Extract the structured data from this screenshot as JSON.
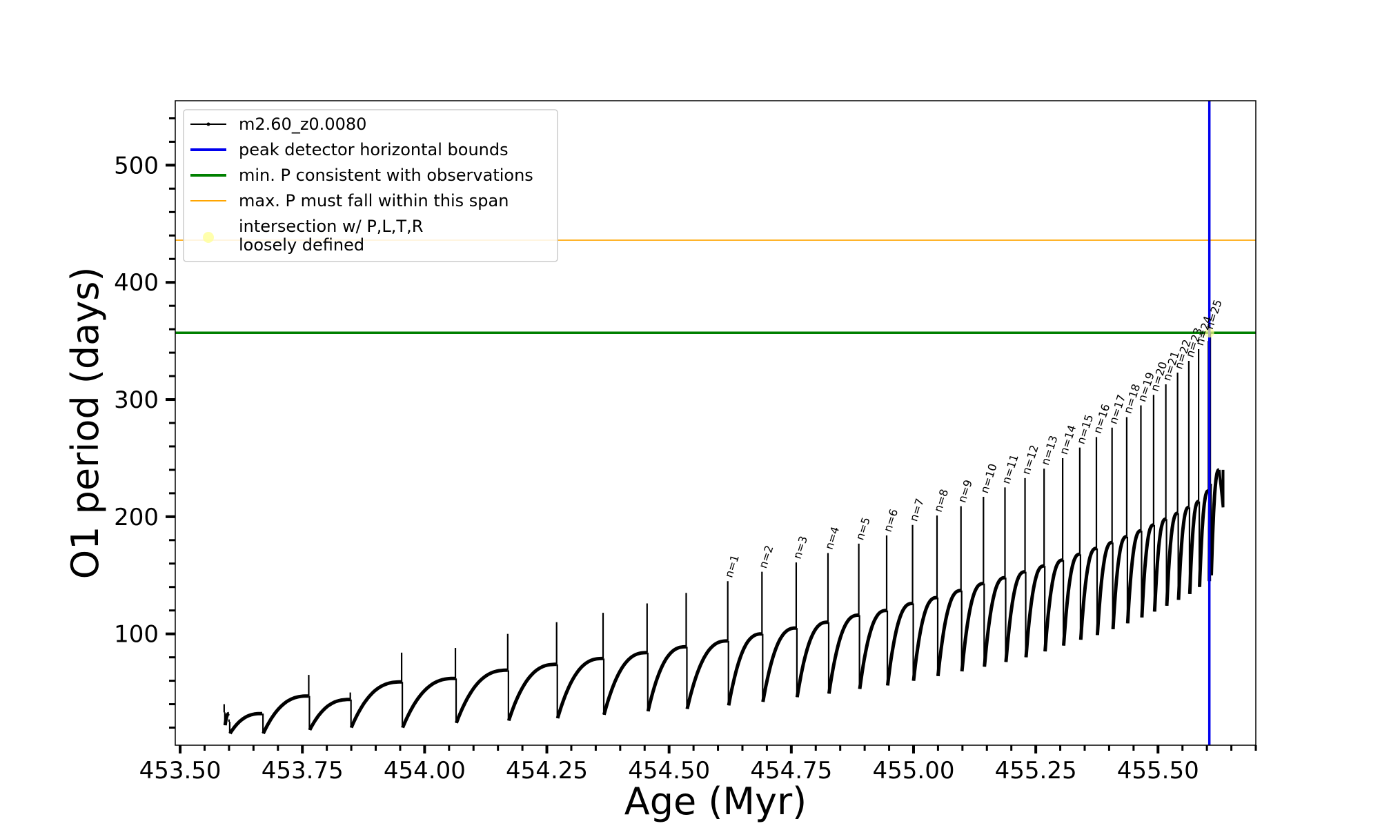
{
  "chart_data": {
    "type": "line",
    "xlabel": "Age (Myr)",
    "ylabel": "O1 period (days)",
    "xlim": [
      453.49,
      455.7
    ],
    "ylim": [
      5,
      555
    ],
    "x_ticks": [
      453.5,
      453.75,
      454.0,
      454.25,
      454.5,
      454.75,
      455.0,
      455.25,
      455.5
    ],
    "x_tick_labels": [
      "453.50",
      "453.75",
      "454.00",
      "454.25",
      "454.50",
      "454.75",
      "455.00",
      "455.25",
      "455.50"
    ],
    "y_ticks": [
      100,
      200,
      300,
      400,
      500
    ],
    "y_tick_labels": [
      "100",
      "200",
      "300",
      "400",
      "500"
    ],
    "legend_position": "upper-left",
    "legend": [
      {
        "label": "m2.60_z0.0080",
        "color": "#000000",
        "style": "line-marker"
      },
      {
        "label": "peak detector horizontal bounds",
        "color": "#0000ee",
        "style": "line"
      },
      {
        "label": "min. P consistent with observations",
        "color": "#008000",
        "style": "line"
      },
      {
        "label": "max. P must fall within this span",
        "color": "#ffa500",
        "style": "line"
      },
      {
        "label": "intersection w/ P,L,T,R",
        "label2": "loosely defined",
        "color": "#ffff99",
        "style": "marker"
      }
    ],
    "vertical_line": {
      "x": 455.605,
      "color": "#0000ee"
    },
    "hlines": [
      {
        "y": 357,
        "color": "#008000"
      },
      {
        "y": 436,
        "color": "#ffa500"
      }
    ],
    "intersection_point": {
      "x": 455.605,
      "y": 357,
      "color": "#ffff99"
    },
    "series": [
      {
        "name": "m2.60_z0.0080",
        "color": "#000000",
        "pulses": [
          {
            "x": 453.59,
            "base": 33,
            "peak": 40,
            "min": 22,
            "end": 32
          },
          {
            "x": 453.6,
            "base": 25,
            "peak": 27,
            "min": 15,
            "end": 32
          },
          {
            "x": 453.668,
            "base": 32,
            "peak": 32,
            "min": 15,
            "end": 47
          },
          {
            "x": 453.763,
            "base": 47,
            "peak": 65,
            "min": 18,
            "end": 44
          },
          {
            "x": 453.848,
            "base": 44,
            "peak": 50,
            "min": 20,
            "end": 59
          },
          {
            "x": 453.953,
            "base": 59,
            "peak": 84,
            "min": 20,
            "end": 62
          },
          {
            "x": 454.063,
            "base": 62,
            "peak": 88,
            "min": 24,
            "end": 69
          },
          {
            "x": 454.17,
            "base": 69,
            "peak": 100,
            "min": 26,
            "end": 74
          },
          {
            "x": 454.27,
            "base": 74,
            "peak": 110,
            "min": 28,
            "end": 79
          },
          {
            "x": 454.365,
            "base": 79,
            "peak": 118,
            "min": 31,
            "end": 84
          },
          {
            "x": 454.455,
            "base": 84,
            "peak": 126,
            "min": 34,
            "end": 89
          },
          {
            "x": 454.535,
            "base": 89,
            "peak": 135,
            "min": 36,
            "end": 94
          },
          {
            "x": 454.62,
            "base": 94,
            "peak": 145,
            "min": 39,
            "end": 100
          },
          {
            "x": 454.69,
            "base": 100,
            "peak": 153,
            "min": 42,
            "end": 105
          },
          {
            "x": 454.76,
            "base": 105,
            "peak": 161,
            "min": 46,
            "end": 110
          },
          {
            "x": 454.825,
            "base": 110,
            "peak": 169,
            "min": 49,
            "end": 116
          },
          {
            "x": 454.888,
            "base": 116,
            "peak": 177,
            "min": 53,
            "end": 120
          },
          {
            "x": 454.945,
            "base": 120,
            "peak": 184,
            "min": 56,
            "end": 126
          },
          {
            "x": 454.998,
            "base": 126,
            "peak": 193,
            "min": 60,
            "end": 131
          },
          {
            "x": 455.048,
            "base": 131,
            "peak": 201,
            "min": 64,
            "end": 137
          },
          {
            "x": 455.097,
            "base": 137,
            "peak": 209,
            "min": 68,
            "end": 143
          },
          {
            "x": 455.143,
            "base": 143,
            "peak": 217,
            "min": 72,
            "end": 148
          },
          {
            "x": 455.187,
            "base": 148,
            "peak": 225,
            "min": 76,
            "end": 153
          },
          {
            "x": 455.228,
            "base": 153,
            "peak": 233,
            "min": 80,
            "end": 158
          },
          {
            "x": 455.267,
            "base": 158,
            "peak": 241,
            "min": 85,
            "end": 163
          },
          {
            "x": 455.305,
            "base": 163,
            "peak": 250,
            "min": 90,
            "end": 168
          },
          {
            "x": 455.34,
            "base": 168,
            "peak": 259,
            "min": 95,
            "end": 173
          },
          {
            "x": 455.374,
            "base": 173,
            "peak": 268,
            "min": 99,
            "end": 178
          },
          {
            "x": 455.406,
            "base": 178,
            "peak": 276,
            "min": 104,
            "end": 183
          },
          {
            "x": 455.436,
            "base": 183,
            "peak": 285,
            "min": 109,
            "end": 188
          },
          {
            "x": 455.465,
            "base": 188,
            "peak": 295,
            "min": 114,
            "end": 193
          },
          {
            "x": 455.491,
            "base": 193,
            "peak": 304,
            "min": 119,
            "end": 198
          },
          {
            "x": 455.516,
            "base": 198,
            "peak": 313,
            "min": 124,
            "end": 203
          },
          {
            "x": 455.54,
            "base": 203,
            "peak": 323,
            "min": 129,
            "end": 208
          },
          {
            "x": 455.563,
            "base": 208,
            "peak": 333,
            "min": 134,
            "end": 213
          },
          {
            "x": 455.583,
            "base": 213,
            "peak": 343,
            "min": 140,
            "end": 222
          },
          {
            "x": 455.603,
            "base": 222,
            "peak": 350,
            "min": 145,
            "end": 228
          },
          {
            "x": 455.607,
            "base": 228,
            "peak": 357,
            "min": 150,
            "end": 240
          }
        ],
        "tail": {
          "x": [
            455.625,
            455.633
          ],
          "y": [
            240,
            208
          ]
        }
      }
    ],
    "peak_labels": [
      {
        "x": 454.62,
        "y": 145,
        "text": "n=1"
      },
      {
        "x": 454.69,
        "y": 153,
        "text": "n=2"
      },
      {
        "x": 454.76,
        "y": 161,
        "text": "n=3"
      },
      {
        "x": 454.825,
        "y": 169,
        "text": "n=4"
      },
      {
        "x": 454.888,
        "y": 177,
        "text": "n=5"
      },
      {
        "x": 454.945,
        "y": 184,
        "text": "n=6"
      },
      {
        "x": 454.998,
        "y": 193,
        "text": "n=7"
      },
      {
        "x": 455.048,
        "y": 201,
        "text": "n=8"
      },
      {
        "x": 455.097,
        "y": 209,
        "text": "n=9"
      },
      {
        "x": 455.143,
        "y": 217,
        "text": "n=10"
      },
      {
        "x": 455.187,
        "y": 225,
        "text": "n=11"
      },
      {
        "x": 455.228,
        "y": 233,
        "text": "n=12"
      },
      {
        "x": 455.267,
        "y": 241,
        "text": "n=13"
      },
      {
        "x": 455.305,
        "y": 250,
        "text": "n=14"
      },
      {
        "x": 455.34,
        "y": 259,
        "text": "n=15"
      },
      {
        "x": 455.374,
        "y": 268,
        "text": "n=16"
      },
      {
        "x": 455.406,
        "y": 276,
        "text": "n=17"
      },
      {
        "x": 455.436,
        "y": 285,
        "text": "n=18"
      },
      {
        "x": 455.465,
        "y": 295,
        "text": "n=19"
      },
      {
        "x": 455.491,
        "y": 304,
        "text": "n=20"
      },
      {
        "x": 455.516,
        "y": 313,
        "text": "n=21"
      },
      {
        "x": 455.54,
        "y": 323,
        "text": "n=22"
      },
      {
        "x": 455.563,
        "y": 333,
        "text": "n=23"
      },
      {
        "x": 455.583,
        "y": 343,
        "text": "n=24"
      },
      {
        "x": 455.603,
        "y": 357,
        "text": "n=25"
      }
    ]
  }
}
